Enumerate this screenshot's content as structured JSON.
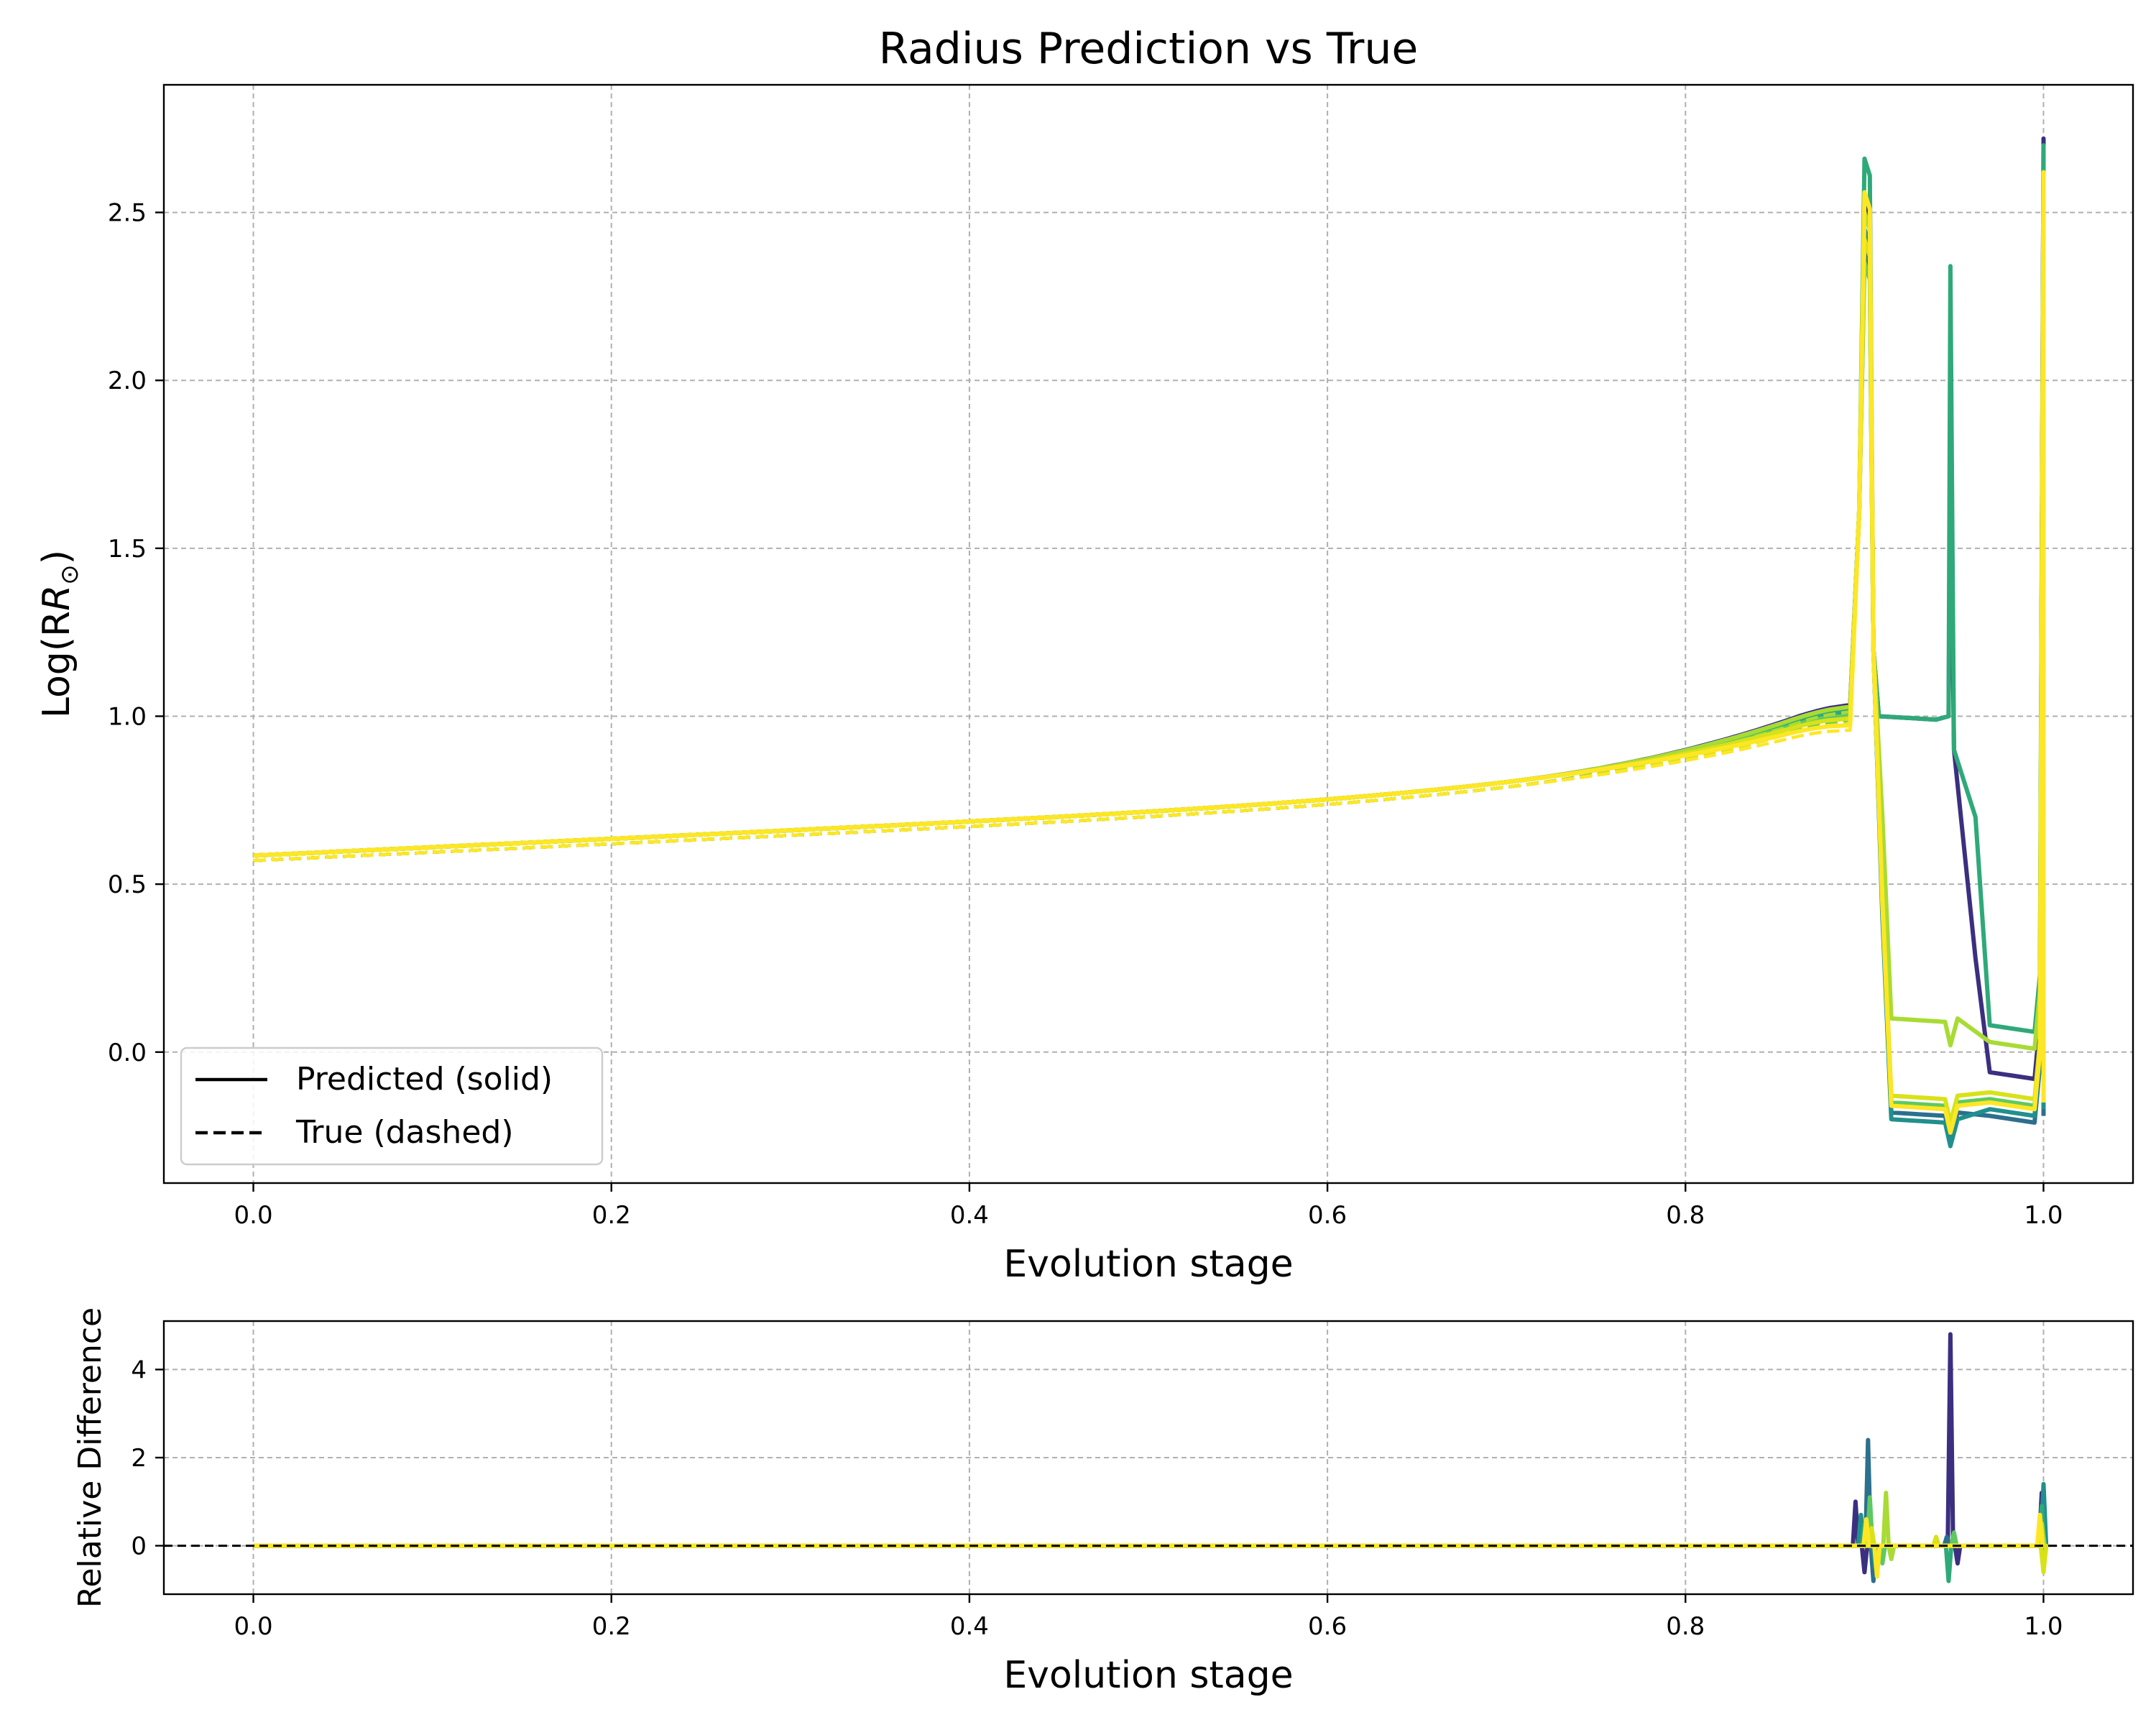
{
  "colors": {
    "palette": [
      "#3b2f80",
      "#2c6f8e",
      "#21908d",
      "#2fa97a",
      "#5ec962",
      "#a8db34",
      "#d8e219",
      "#fde725"
    ],
    "reference_line": "#000000",
    "grid": "#b0b0b0"
  },
  "chart_data": [
    {
      "type": "line",
      "title": "Radius Prediction vs True",
      "xlabel": "Evolution stage",
      "ylabel": "Log(R",
      "ylabel_sub": "⊙",
      "ylabel_close": ")",
      "xlim": [
        -0.05,
        1.05
      ],
      "ylim": [
        -0.39,
        2.88
      ],
      "xticks": [
        0.0,
        0.2,
        0.4,
        0.6,
        0.8,
        1.0
      ],
      "xtick_labels": [
        "0.0",
        "0.2",
        "0.4",
        "0.6",
        "0.8",
        "1.0"
      ],
      "yticks": [
        0.0,
        0.5,
        1.0,
        1.5,
        2.0,
        2.5
      ],
      "ytick_labels": [
        "0.0",
        "0.5",
        "1.0",
        "1.5",
        "2.0",
        "2.5"
      ],
      "grid": true,
      "legend": {
        "placement": "lower-left",
        "entries": [
          {
            "label": "Predicted (solid)",
            "style": "solid"
          },
          {
            "label": "True (dashed)",
            "style": "dashed"
          }
        ]
      },
      "series": [
        {
          "color": "#3b2f80",
          "base": 0.0,
          "bump": 0.12,
          "peak": 2.52,
          "plateau": 1.0,
          "spike2": 1.8,
          "post": -0.12,
          "tail": -0.06,
          "end": 2.72
        },
        {
          "color": "#2c6f8e",
          "base": 0.0,
          "bump": 0.08,
          "peak": 2.38,
          "plateau": null,
          "spike2": null,
          "post": -0.18,
          "tail": -0.19,
          "end": 2.5
        },
        {
          "color": "#21908d",
          "base": 0.0,
          "bump": 0.1,
          "peak": 2.45,
          "plateau": null,
          "spike2": null,
          "post": -0.2,
          "tail": -0.17,
          "end": 2.6
        },
        {
          "color": "#2fa97a",
          "base": 0.0,
          "bump": 0.09,
          "peak": 2.66,
          "plateau": 1.0,
          "spike2": 2.34,
          "post": 0.3,
          "tail": 0.08,
          "end": 2.7
        },
        {
          "color": "#5ec962",
          "base": 0.0,
          "bump": 0.06,
          "peak": 2.35,
          "plateau": null,
          "spike2": null,
          "post": -0.15,
          "tail": -0.14,
          "end": 2.4
        },
        {
          "color": "#a8db34",
          "base": 0.0,
          "bump": 0.11,
          "peak": 2.5,
          "plateau": null,
          "spike2": null,
          "post": 0.1,
          "tail": 0.03,
          "end": 2.55
        },
        {
          "color": "#d8e219",
          "base": 0.0,
          "bump": 0.04,
          "peak": 2.42,
          "plateau": null,
          "spike2": null,
          "post": -0.13,
          "tail": -0.12,
          "end": 2.45
        },
        {
          "color": "#fde725",
          "base": 0.0,
          "bump": 0.0,
          "peak": 2.56,
          "plateau": null,
          "spike2": null,
          "post": -0.16,
          "tail": -0.15,
          "end": 2.62
        }
      ]
    },
    {
      "type": "line",
      "title": "",
      "xlabel": "Evolution stage",
      "ylabel": "Relative Difference",
      "xlim": [
        -0.05,
        1.05
      ],
      "ylim": [
        -1.1,
        5.1
      ],
      "xticks": [
        0.0,
        0.2,
        0.4,
        0.6,
        0.8,
        1.0
      ],
      "xtick_labels": [
        "0.0",
        "0.2",
        "0.4",
        "0.6",
        "0.8",
        "1.0"
      ],
      "yticks": [
        0,
        2,
        4
      ],
      "ytick_labels": [
        "0",
        "2",
        "4"
      ],
      "grid": true,
      "reference_line": {
        "y": 0,
        "style": "dashed"
      },
      "series": [
        {
          "color": "#3b2f80",
          "spikes": [
            [
              0.895,
              1.0
            ],
            [
              0.9,
              -0.6
            ],
            [
              0.948,
              4.8
            ],
            [
              0.952,
              -0.4
            ],
            [
              0.999,
              1.2
            ]
          ]
        },
        {
          "color": "#2c6f8e",
          "spikes": [
            [
              0.902,
              2.4
            ],
            [
              0.905,
              -0.8
            ],
            [
              0.946,
              0.2
            ],
            [
              1.0,
              -0.5
            ]
          ]
        },
        {
          "color": "#21908d",
          "spikes": [
            [
              0.898,
              0.7
            ],
            [
              0.906,
              -0.5
            ],
            [
              1.0,
              1.4
            ]
          ]
        },
        {
          "color": "#2fa97a",
          "spikes": [
            [
              0.9,
              0.5
            ],
            [
              0.947,
              -0.8
            ],
            [
              0.999,
              0.9
            ]
          ]
        },
        {
          "color": "#5ec962",
          "spikes": [
            [
              0.903,
              1.1
            ],
            [
              0.91,
              -0.4
            ],
            [
              0.95,
              0.3
            ]
          ]
        },
        {
          "color": "#a8db34",
          "spikes": [
            [
              0.912,
              1.2
            ],
            [
              0.915,
              -0.3
            ],
            [
              0.999,
              0.5
            ]
          ]
        },
        {
          "color": "#d8e219",
          "spikes": [
            [
              0.904,
              0.4
            ],
            [
              0.94,
              0.2
            ],
            [
              1.0,
              -0.6
            ]
          ]
        },
        {
          "color": "#fde725",
          "spikes": [
            [
              0.901,
              0.6
            ],
            [
              0.907,
              -0.7
            ],
            [
              0.998,
              0.7
            ]
          ]
        }
      ]
    }
  ]
}
